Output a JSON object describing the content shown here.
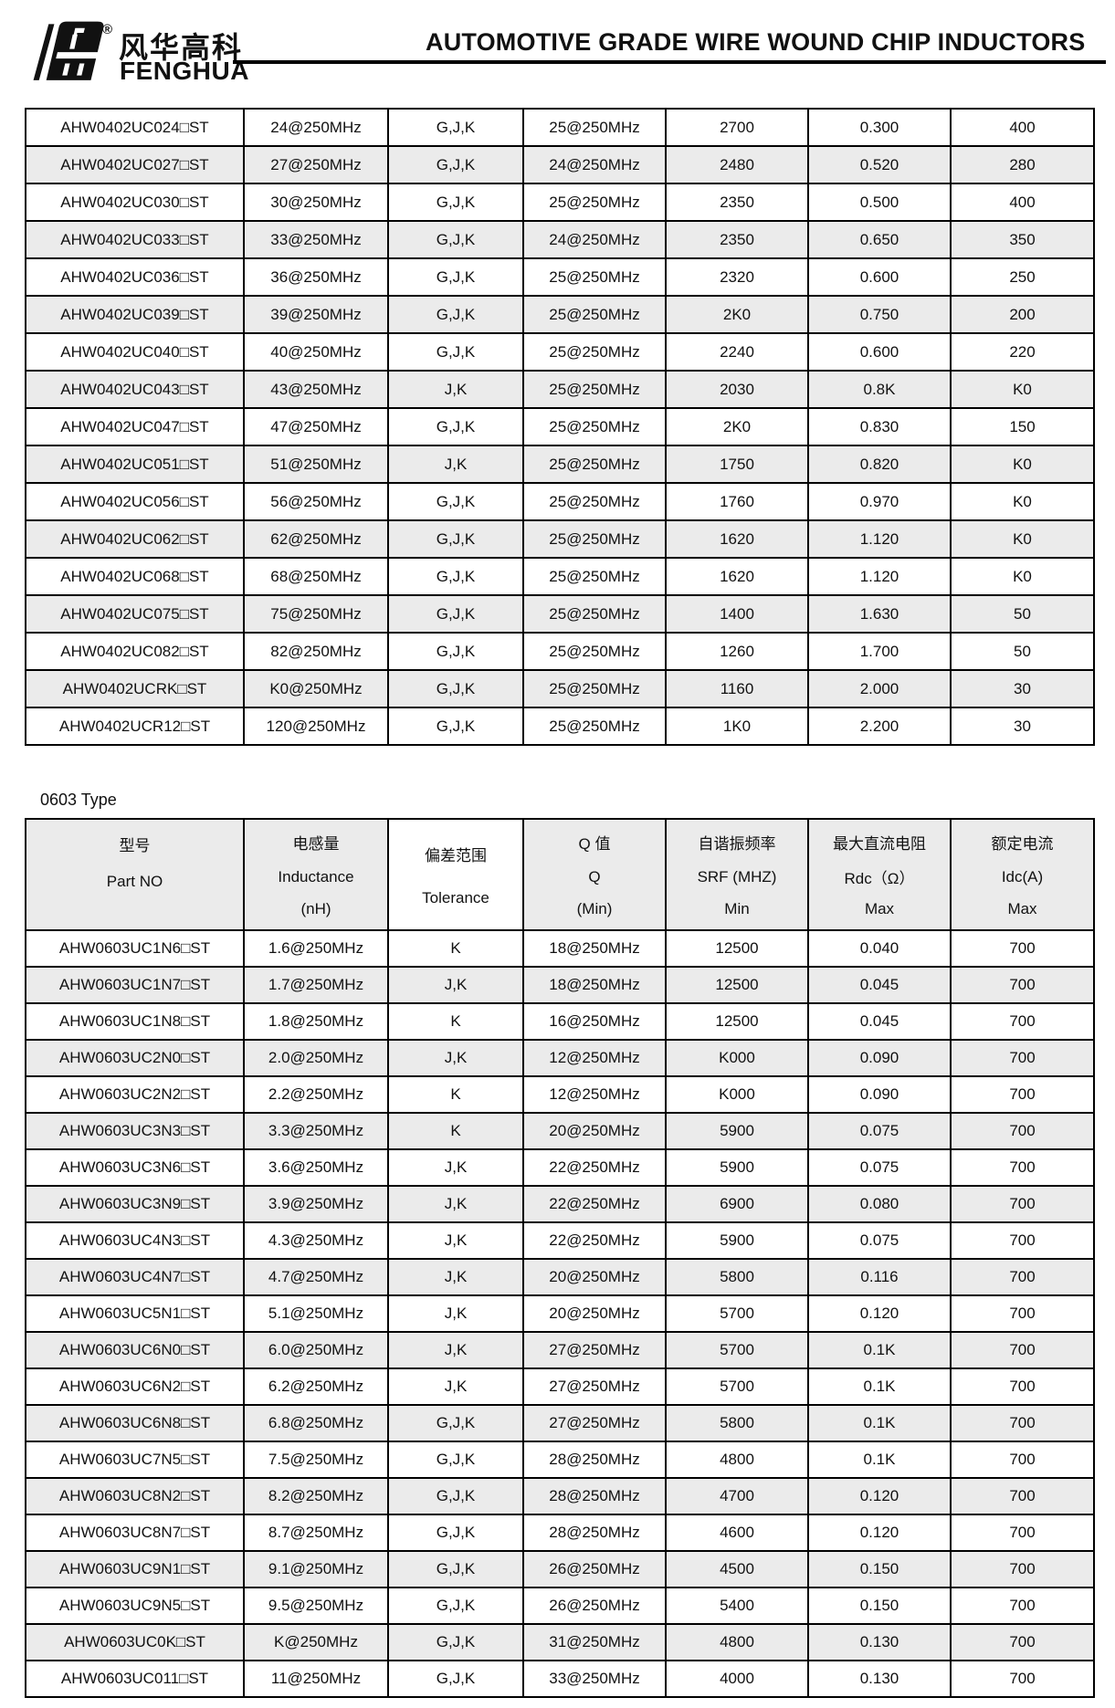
{
  "brand": {
    "logo_cn": "风华高科",
    "logo_en": "FENGHUA",
    "registered_mark": "®"
  },
  "header": {
    "title": "AUTOMOTIVE GRADE WIRE WOUND CHIP INDUCTORS"
  },
  "section_label": "0603 Type",
  "colors": {
    "row_alt": "#ebebeb",
    "border": "#000000",
    "logo_black": "#1a1a1a"
  },
  "table_0402": {
    "rows": [
      [
        "AHW0402UC024□ST",
        "24@250MHz",
        "G,J,K",
        "25@250MHz",
        "2700",
        "0.300",
        "400"
      ],
      [
        "AHW0402UC027□ST",
        "27@250MHz",
        "G,J,K",
        "24@250MHz",
        "2480",
        "0.520",
        "280"
      ],
      [
        "AHW0402UC030□ST",
        "30@250MHz",
        "G,J,K",
        "25@250MHz",
        "2350",
        "0.500",
        "400"
      ],
      [
        "AHW0402UC033□ST",
        "33@250MHz",
        "G,J,K",
        "24@250MHz",
        "2350",
        "0.650",
        "350"
      ],
      [
        "AHW0402UC036□ST",
        "36@250MHz",
        "G,J,K",
        "25@250MHz",
        "2320",
        "0.600",
        "250"
      ],
      [
        "AHW0402UC039□ST",
        "39@250MHz",
        "G,J,K",
        "25@250MHz",
        "2K0",
        "0.750",
        "200"
      ],
      [
        "AHW0402UC040□ST",
        "40@250MHz",
        "G,J,K",
        "25@250MHz",
        "2240",
        "0.600",
        "220"
      ],
      [
        "AHW0402UC043□ST",
        "43@250MHz",
        "J,K",
        "25@250MHz",
        "2030",
        "0.8K",
        "K0"
      ],
      [
        "AHW0402UC047□ST",
        "47@250MHz",
        "G,J,K",
        "25@250MHz",
        "2K0",
        "0.830",
        "150"
      ],
      [
        "AHW0402UC051□ST",
        "51@250MHz",
        "J,K",
        "25@250MHz",
        "1750",
        "0.820",
        "K0"
      ],
      [
        "AHW0402UC056□ST",
        "56@250MHz",
        "G,J,K",
        "25@250MHz",
        "1760",
        "0.970",
        "K0"
      ],
      [
        "AHW0402UC062□ST",
        "62@250MHz",
        "G,J,K",
        "25@250MHz",
        "1620",
        "1.120",
        "K0"
      ],
      [
        "AHW0402UC068□ST",
        "68@250MHz",
        "G,J,K",
        "25@250MHz",
        "1620",
        "1.120",
        "K0"
      ],
      [
        "AHW0402UC075□ST",
        "75@250MHz",
        "G,J,K",
        "25@250MHz",
        "1400",
        "1.630",
        "50"
      ],
      [
        "AHW0402UC082□ST",
        "82@250MHz",
        "G,J,K",
        "25@250MHz",
        "1260",
        "1.700",
        "50"
      ],
      [
        "AHW0402UCRK□ST",
        "K0@250MHz",
        "G,J,K",
        "25@250MHz",
        "1160",
        "2.000",
        "30"
      ],
      [
        "AHW0402UCR12□ST",
        "120@250MHz",
        "G,J,K",
        "25@250MHz",
        "1K0",
        "2.200",
        "30"
      ]
    ]
  },
  "table_0603": {
    "header_columns": [
      {
        "lines": [
          "型号",
          "Part NO"
        ]
      },
      {
        "lines": [
          "电感量",
          "Inductance",
          "(nH)"
        ]
      },
      {
        "lines": [
          "偏差范围",
          "Tolerance"
        ]
      },
      {
        "lines": [
          "Q 值",
          "Q",
          "(Min)"
        ]
      },
      {
        "lines": [
          "自谐振频率",
          "SRF (MHZ)",
          "Min"
        ]
      },
      {
        "lines": [
          "最大直流电阻",
          "Rdc（Ω）",
          "Max"
        ]
      },
      {
        "lines": [
          "额定电流",
          "Idc(A)",
          "Max"
        ]
      }
    ],
    "rows": [
      [
        "AHW0603UC1N6□ST",
        "1.6@250MHz",
        "K",
        "18@250MHz",
        "12500",
        "0.040",
        "700"
      ],
      [
        "AHW0603UC1N7□ST",
        "1.7@250MHz",
        "J,K",
        "18@250MHz",
        "12500",
        "0.045",
        "700"
      ],
      [
        "AHW0603UC1N8□ST",
        "1.8@250MHz",
        "K",
        "16@250MHz",
        "12500",
        "0.045",
        "700"
      ],
      [
        "AHW0603UC2N0□ST",
        "2.0@250MHz",
        "J,K",
        "12@250MHz",
        "K000",
        "0.090",
        "700"
      ],
      [
        "AHW0603UC2N2□ST",
        "2.2@250MHz",
        "K",
        "12@250MHz",
        "K000",
        "0.090",
        "700"
      ],
      [
        "AHW0603UC3N3□ST",
        "3.3@250MHz",
        "K",
        "20@250MHz",
        "5900",
        "0.075",
        "700"
      ],
      [
        "AHW0603UC3N6□ST",
        "3.6@250MHz",
        "J,K",
        "22@250MHz",
        "5900",
        "0.075",
        "700"
      ],
      [
        "AHW0603UC3N9□ST",
        "3.9@250MHz",
        "J,K",
        "22@250MHz",
        "6900",
        "0.080",
        "700"
      ],
      [
        "AHW0603UC4N3□ST",
        "4.3@250MHz",
        "J,K",
        "22@250MHz",
        "5900",
        "0.075",
        "700"
      ],
      [
        "AHW0603UC4N7□ST",
        "4.7@250MHz",
        "J,K",
        "20@250MHz",
        "5800",
        "0.116",
        "700"
      ],
      [
        "AHW0603UC5N1□ST",
        "5.1@250MHz",
        "J,K",
        "20@250MHz",
        "5700",
        "0.120",
        "700"
      ],
      [
        "AHW0603UC6N0□ST",
        "6.0@250MHz",
        "J,K",
        "27@250MHz",
        "5700",
        "0.1K",
        "700"
      ],
      [
        "AHW0603UC6N2□ST",
        "6.2@250MHz",
        "J,K",
        "27@250MHz",
        "5700",
        "0.1K",
        "700"
      ],
      [
        "AHW0603UC6N8□ST",
        "6.8@250MHz",
        "G,J,K",
        "27@250MHz",
        "5800",
        "0.1K",
        "700"
      ],
      [
        "AHW0603UC7N5□ST",
        "7.5@250MHz",
        "G,J,K",
        "28@250MHz",
        "4800",
        "0.1K",
        "700"
      ],
      [
        "AHW0603UC8N2□ST",
        "8.2@250MHz",
        "G,J,K",
        "28@250MHz",
        "4700",
        "0.120",
        "700"
      ],
      [
        "AHW0603UC8N7□ST",
        "8.7@250MHz",
        "G,J,K",
        "28@250MHz",
        "4600",
        "0.120",
        "700"
      ],
      [
        "AHW0603UC9N1□ST",
        "9.1@250MHz",
        "G,J,K",
        "26@250MHz",
        "4500",
        "0.150",
        "700"
      ],
      [
        "AHW0603UC9N5□ST",
        "9.5@250MHz",
        "G,J,K",
        "26@250MHz",
        "5400",
        "0.150",
        "700"
      ],
      [
        "AHW0603UC0K□ST",
        "K@250MHz",
        "G,J,K",
        "31@250MHz",
        "4800",
        "0.130",
        "700"
      ],
      [
        "AHW0603UC011□ST",
        "11@250MHz",
        "G,J,K",
        "33@250MHz",
        "4000",
        "0.130",
        "700"
      ]
    ]
  }
}
